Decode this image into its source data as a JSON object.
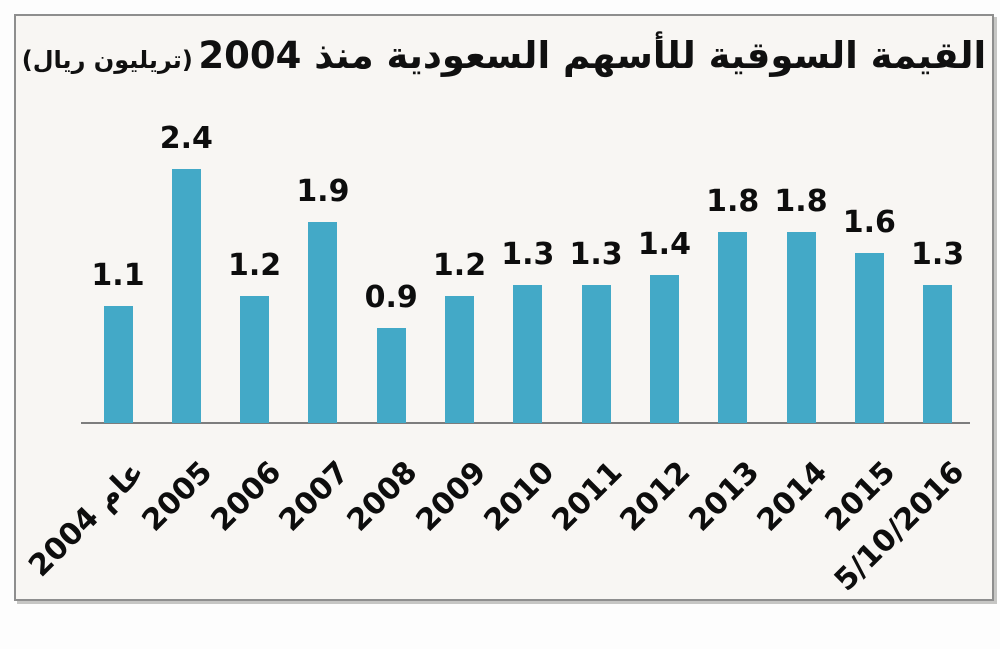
{
  "title": {
    "main": "القيمة السوقية للأسهم السعودية منذ 2004",
    "unit": "(تريليون ريال)"
  },
  "chart_data": {
    "type": "bar",
    "title": "القيمة السوقية للأسهم السعودية منذ 2004 (تريليون ريال)",
    "categories": [
      "عام 2004",
      "2005",
      "2006",
      "2007",
      "2008",
      "2009",
      "2010",
      "2011",
      "2012",
      "2013",
      "2014",
      "2015",
      "5/10/2016"
    ],
    "values": [
      1.1,
      2.4,
      1.2,
      1.9,
      0.9,
      1.2,
      1.3,
      1.3,
      1.4,
      1.8,
      1.8,
      1.6,
      1.3
    ],
    "value_labels": [
      "1.1",
      "2.4",
      "1.2",
      "1.9",
      "0.9",
      "1.2",
      "1.3",
      "1.3",
      "1.4",
      "1.8",
      "1.8",
      "1.6",
      "1.3"
    ],
    "xlabel": "",
    "ylabel": "",
    "ylim": [
      0,
      2.6
    ],
    "grid": false,
    "legend": false,
    "bar_color": "#43a9c7",
    "axis_color": "#7d7d7d",
    "text_color": "#0d0d0d",
    "tick_rotation_deg": 45
  }
}
